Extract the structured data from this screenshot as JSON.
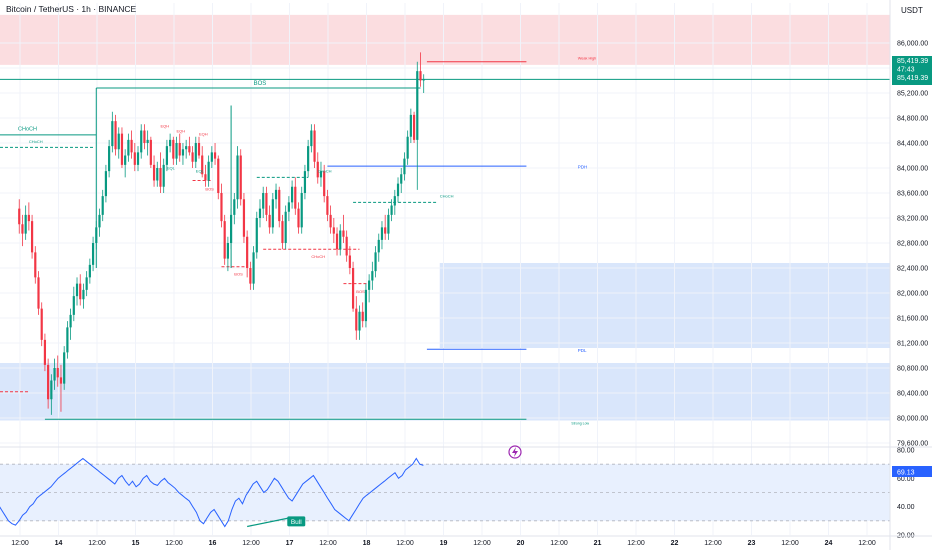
{
  "header": {
    "title": "Bitcoin / TetherUS · 1h · BINANCE",
    "currency": "USDT"
  },
  "price_scale": {
    "ticks": [
      "86,000.00",
      "85,600.00",
      "85,200.00",
      "84,800.00",
      "84,400.00",
      "84,000.00",
      "83,600.00",
      "83,200.00",
      "82,800.00",
      "82,400.00",
      "82,000.00",
      "81,600.00",
      "81,200.00",
      "80,800.00",
      "80,400.00",
      "80,000.00",
      "79,600.00"
    ],
    "last_price": "85,419.39",
    "countdown": "47:43",
    "last_price_repeat": "85,419.39"
  },
  "rsi_scale": {
    "ticks": [
      "80.00",
      "60.00",
      "40.00",
      "20.00"
    ],
    "value": "69.13"
  },
  "time_axis": {
    "labels": [
      "12:00",
      "14",
      "12:00",
      "15",
      "12:00",
      "16",
      "12:00",
      "17",
      "12:00",
      "18",
      "12:00",
      "19",
      "12:00",
      "20",
      "12:00",
      "21",
      "12:00",
      "22",
      "12:00",
      "23",
      "12:00",
      "24",
      "12:00"
    ]
  },
  "annotations": {
    "bos_main": "BOS",
    "choch_left": "CHoCH",
    "choch_left_small": "CHoCH",
    "weak_high": "Weak High",
    "pdh": "PDH",
    "pdl": "PDL",
    "strong_low": "Strong Low",
    "choch_mid": "CHoCH",
    "choch_mid2": "CHoCH",
    "choch_right": "CHoCH",
    "bos_a": "BOS",
    "bos_b": "BOS",
    "bos_c": "BOS",
    "eqh1": "EQH",
    "eqh2": "EQH",
    "eqh3": "EQH",
    "eql1": "EQL",
    "eql2": "EQL",
    "choch_red": "CHoCH",
    "bull": "Bull"
  },
  "colors": {
    "up": "#089981",
    "down": "#f23645",
    "supply_zone": "#fbdde0",
    "demand_zone": "#d9e6fb",
    "rsi_line": "#2962ff",
    "bos": "#089981",
    "pdh": "#2962ff",
    "price_tag": "#089981"
  },
  "chart_data": [
    {
      "type": "candlestick",
      "title": "Bitcoin / TetherUS · 1h · BINANCE",
      "ylim": [
        79400,
        86400
      ],
      "x_range_hours": [
        0,
        253
      ],
      "candles_ohlc": [
        [
          83350,
          83500,
          82950,
          83100
        ],
        [
          83100,
          83250,
          82750,
          82950
        ],
        [
          82950,
          83400,
          82850,
          83250
        ],
        [
          83250,
          83450,
          83000,
          83150
        ],
        [
          83150,
          83250,
          82550,
          82650
        ],
        [
          82650,
          82750,
          82150,
          82250
        ],
        [
          82250,
          82350,
          81650,
          81750
        ],
        [
          81750,
          81850,
          81150,
          81250
        ],
        [
          81250,
          81350,
          80750,
          80850
        ],
        [
          80850,
          80950,
          80150,
          80300
        ],
        [
          80300,
          80700,
          80050,
          80600
        ],
        [
          80600,
          80950,
          80450,
          80800
        ],
        [
          80800,
          81000,
          80500,
          80650
        ],
        [
          80650,
          80850,
          80100,
          80550
        ],
        [
          80550,
          81150,
          80450,
          81050
        ],
        [
          81050,
          81550,
          80950,
          81450
        ],
        [
          81450,
          81750,
          81250,
          81650
        ],
        [
          81650,
          82100,
          81550,
          81950
        ],
        [
          81950,
          82250,
          81800,
          82150
        ],
        [
          82150,
          82300,
          81800,
          81900
        ],
        [
          81900,
          82150,
          81750,
          82050
        ],
        [
          82050,
          82350,
          81950,
          82250
        ],
        [
          82250,
          82550,
          82150,
          82450
        ],
        [
          82450,
          82900,
          82350,
          82800
        ],
        [
          82800,
          83150,
          82700,
          83050
        ],
        [
          83050,
          83350,
          82900,
          83250
        ],
        [
          83250,
          83650,
          83150,
          83550
        ],
        [
          83550,
          84050,
          83450,
          83950
        ],
        [
          83950,
          84450,
          83850,
          84350
        ],
        [
          84350,
          84900,
          84250,
          84750
        ],
        [
          84750,
          84850,
          84200,
          84300
        ],
        [
          84300,
          84650,
          84150,
          84550
        ],
        [
          84550,
          84650,
          84000,
          84050
        ],
        [
          84050,
          84300,
          83850,
          84200
        ],
        [
          84200,
          84550,
          84100,
          84450
        ],
        [
          84450,
          84600,
          84150,
          84250
        ],
        [
          84250,
          84400,
          83950,
          84050
        ],
        [
          84050,
          84350,
          83950,
          84250
        ],
        [
          84250,
          84700,
          84150,
          84600
        ],
        [
          84600,
          84700,
          84300,
          84400
        ],
        [
          84400,
          84600,
          84200,
          84450
        ],
        [
          84450,
          84500,
          84000,
          84050
        ],
        [
          84050,
          84200,
          83700,
          83800
        ],
        [
          83800,
          84100,
          83700,
          84000
        ],
        [
          84000,
          84250,
          83600,
          83700
        ],
        [
          83700,
          84150,
          83600,
          84050
        ],
        [
          84050,
          84450,
          83950,
          84350
        ],
        [
          84350,
          84550,
          84250,
          84450
        ],
        [
          84450,
          84500,
          84050,
          84150
        ],
        [
          84150,
          84500,
          84050,
          84400
        ],
        [
          84400,
          84550,
          84100,
          84200
        ],
        [
          84200,
          84400,
          84050,
          84300
        ],
        [
          84300,
          84450,
          84150,
          84350
        ],
        [
          84350,
          84500,
          84200,
          84250
        ],
        [
          84250,
          84350,
          84000,
          84100
        ],
        [
          84100,
          84500,
          84000,
          84400
        ],
        [
          84400,
          84500,
          84150,
          84200
        ],
        [
          84200,
          84350,
          83850,
          83900
        ],
        [
          83900,
          84050,
          83700,
          83800
        ],
        [
          83800,
          84200,
          83700,
          84100
        ],
        [
          84100,
          84350,
          84000,
          84250
        ],
        [
          84250,
          84400,
          84050,
          84150
        ],
        [
          84150,
          84200,
          83500,
          83600
        ],
        [
          83600,
          83750,
          83050,
          83150
        ],
        [
          83150,
          83250,
          82450,
          82550
        ],
        [
          82550,
          82900,
          82350,
          82800
        ],
        [
          82800,
          83350,
          82700,
          83250
        ],
        [
          83250,
          83600,
          83100,
          83500
        ],
        [
          83500,
          84350,
          83350,
          84200
        ],
        [
          84200,
          84300,
          83400,
          83500
        ],
        [
          83500,
          83600,
          82800,
          82900
        ],
        [
          82900,
          83000,
          82250,
          82400
        ],
        [
          82400,
          82500,
          82050,
          82150
        ],
        [
          82150,
          82750,
          82050,
          82650
        ],
        [
          82650,
          83300,
          82550,
          83200
        ],
        [
          83200,
          83500,
          83050,
          83350
        ],
        [
          83350,
          83700,
          83200,
          83600
        ],
        [
          83600,
          83700,
          83150,
          83250
        ],
        [
          83250,
          83400,
          82950,
          83050
        ],
        [
          83050,
          83600,
          82950,
          83500
        ],
        [
          83500,
          83750,
          83350,
          83650
        ],
        [
          83650,
          83700,
          83050,
          83150
        ],
        [
          83150,
          83250,
          82700,
          82800
        ],
        [
          82800,
          83400,
          82700,
          83300
        ],
        [
          83300,
          83550,
          83150,
          83450
        ],
        [
          83450,
          83800,
          83350,
          83700
        ],
        [
          83700,
          83850,
          83250,
          83350
        ],
        [
          83350,
          83450,
          82950,
          83050
        ],
        [
          83050,
          83700,
          82950,
          83600
        ],
        [
          83600,
          84050,
          83500,
          83950
        ],
        [
          83950,
          84450,
          83850,
          84350
        ],
        [
          84350,
          84700,
          84250,
          84600
        ],
        [
          84600,
          84700,
          84000,
          84100
        ],
        [
          84100,
          84250,
          83750,
          83850
        ],
        [
          83850,
          84100,
          83700,
          83950
        ],
        [
          83950,
          84050,
          83450,
          83550
        ],
        [
          83550,
          83650,
          83150,
          83250
        ],
        [
          83250,
          83400,
          82950,
          83050
        ],
        [
          83050,
          83200,
          82800,
          82950
        ],
        [
          82950,
          83050,
          82600,
          82700
        ],
        [
          82700,
          83100,
          82600,
          83000
        ],
        [
          83000,
          83250,
          82800,
          82900
        ],
        [
          82900,
          83000,
          82500,
          82600
        ],
        [
          82600,
          82750,
          82300,
          82400
        ],
        [
          82400,
          82500,
          81700,
          81750
        ],
        [
          81750,
          81950,
          81250,
          81400
        ],
        [
          81400,
          81800,
          81250,
          81700
        ],
        [
          81700,
          81850,
          81450,
          81550
        ],
        [
          81550,
          82150,
          81450,
          82050
        ],
        [
          82050,
          82300,
          81850,
          82200
        ],
        [
          82200,
          82500,
          82050,
          82350
        ],
        [
          82350,
          82750,
          82250,
          82650
        ],
        [
          82650,
          82950,
          82500,
          82850
        ],
        [
          82850,
          83150,
          82700,
          83050
        ],
        [
          83050,
          83250,
          82850,
          82950
        ],
        [
          82950,
          83350,
          82850,
          83250
        ],
        [
          83250,
          83500,
          83150,
          83400
        ],
        [
          83400,
          83650,
          83250,
          83550
        ],
        [
          83550,
          83850,
          83450,
          83750
        ],
        [
          83750,
          84000,
          83600,
          83900
        ],
        [
          83900,
          84250,
          83800,
          84150
        ],
        [
          84150,
          84600,
          84050,
          84500
        ],
        [
          84500,
          84950,
          84400,
          84850
        ],
        [
          84850,
          84900,
          84400,
          84450
        ],
        [
          84450,
          85700,
          83650,
          85550
        ],
        [
          85550,
          85850,
          85300,
          85400
        ],
        [
          85400,
          85500,
          85200,
          85419
        ]
      ]
    },
    {
      "type": "line",
      "title": "RSI",
      "ylim": [
        20,
        80
      ],
      "values": [
        50,
        48,
        45,
        42,
        38,
        34,
        30,
        28,
        27,
        30,
        34,
        36,
        40,
        42,
        46,
        48,
        50,
        52,
        54,
        57,
        60,
        62,
        64,
        66,
        68,
        70,
        72,
        74,
        72,
        70,
        68,
        66,
        64,
        62,
        60,
        58,
        56,
        60,
        62,
        58,
        55,
        58,
        54,
        56,
        60,
        62,
        58,
        56,
        55,
        58,
        60,
        57,
        55,
        53,
        50,
        48,
        46,
        44,
        40,
        36,
        30,
        28,
        32,
        36,
        38,
        34,
        30,
        26,
        30,
        38,
        44,
        46,
        42,
        48,
        52,
        56,
        58,
        54,
        50,
        52,
        56,
        60,
        58,
        54,
        50,
        46,
        44,
        48,
        52,
        56,
        58,
        60,
        62,
        58,
        54,
        50,
        46,
        42,
        38,
        36,
        34,
        32,
        30,
        34,
        38,
        42,
        46,
        48,
        50,
        52,
        54,
        56,
        58,
        60,
        62,
        64,
        60,
        62,
        66,
        68,
        70,
        74,
        70,
        69.13
      ],
      "levels": [
        70,
        50,
        30
      ]
    }
  ]
}
